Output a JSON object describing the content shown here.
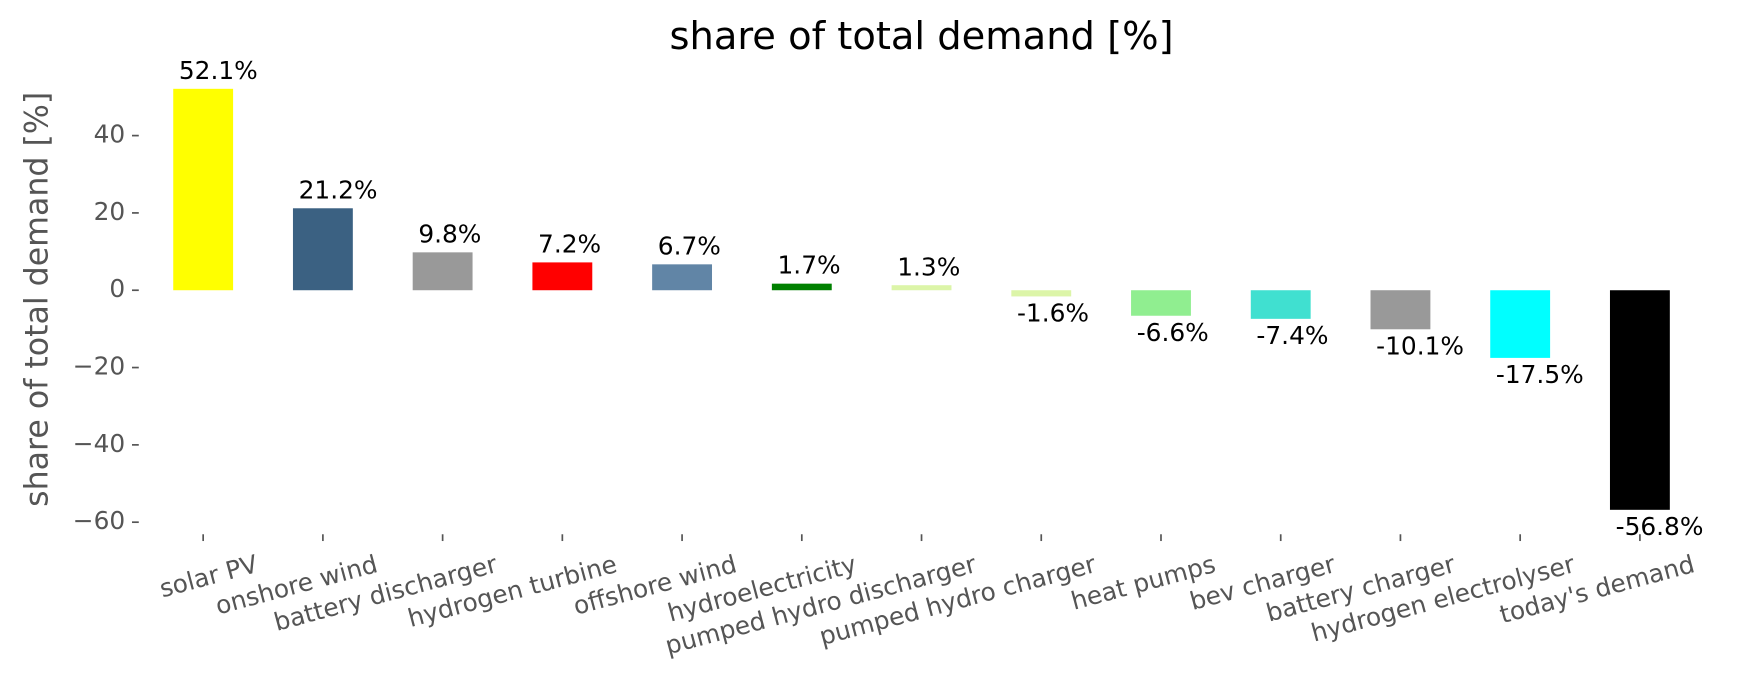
{
  "chart_data": {
    "type": "bar",
    "title": "share of total demand [%]",
    "ylabel": "share of total demand [%]",
    "categories": [
      "solar PV",
      "onshore wind",
      "battery discharger",
      "hydrogen turbine",
      "offshore wind",
      "hydroelectricity",
      "pumped hydro discharger",
      "pumped hydro charger",
      "heat pumps",
      "bev charger",
      "battery charger",
      "hydrogen electrolyser",
      "today's demand"
    ],
    "values": [
      52.1,
      21.2,
      9.8,
      7.2,
      6.7,
      1.7,
      1.3,
      -1.6,
      -6.6,
      -7.4,
      -10.1,
      -17.5,
      -56.8
    ],
    "value_labels": [
      "52.1%",
      "21.2%",
      "9.8%",
      "7.2%",
      "6.7%",
      "1.7%",
      "1.3%",
      "-1.6%",
      "-6.6%",
      "-7.4%",
      "-10.1%",
      "-17.5%",
      "-56.8%"
    ],
    "colors": [
      "#ffff00",
      "#3b6182",
      "#999999",
      "#ff0000",
      "#6185a6",
      "#008000",
      "#dcf5a8",
      "#dcf5a8",
      "#90ee90",
      "#40e0d0",
      "#999999",
      "#00ffff",
      "#000000"
    ],
    "ylim": [
      -62.245,
      57.545
    ],
    "yticks": [
      {
        "value": -60,
        "label": "−60"
      },
      {
        "value": -40,
        "label": "−40"
      },
      {
        "value": -20,
        "label": "−20"
      },
      0,
      20,
      40
    ],
    "grid": false
  }
}
